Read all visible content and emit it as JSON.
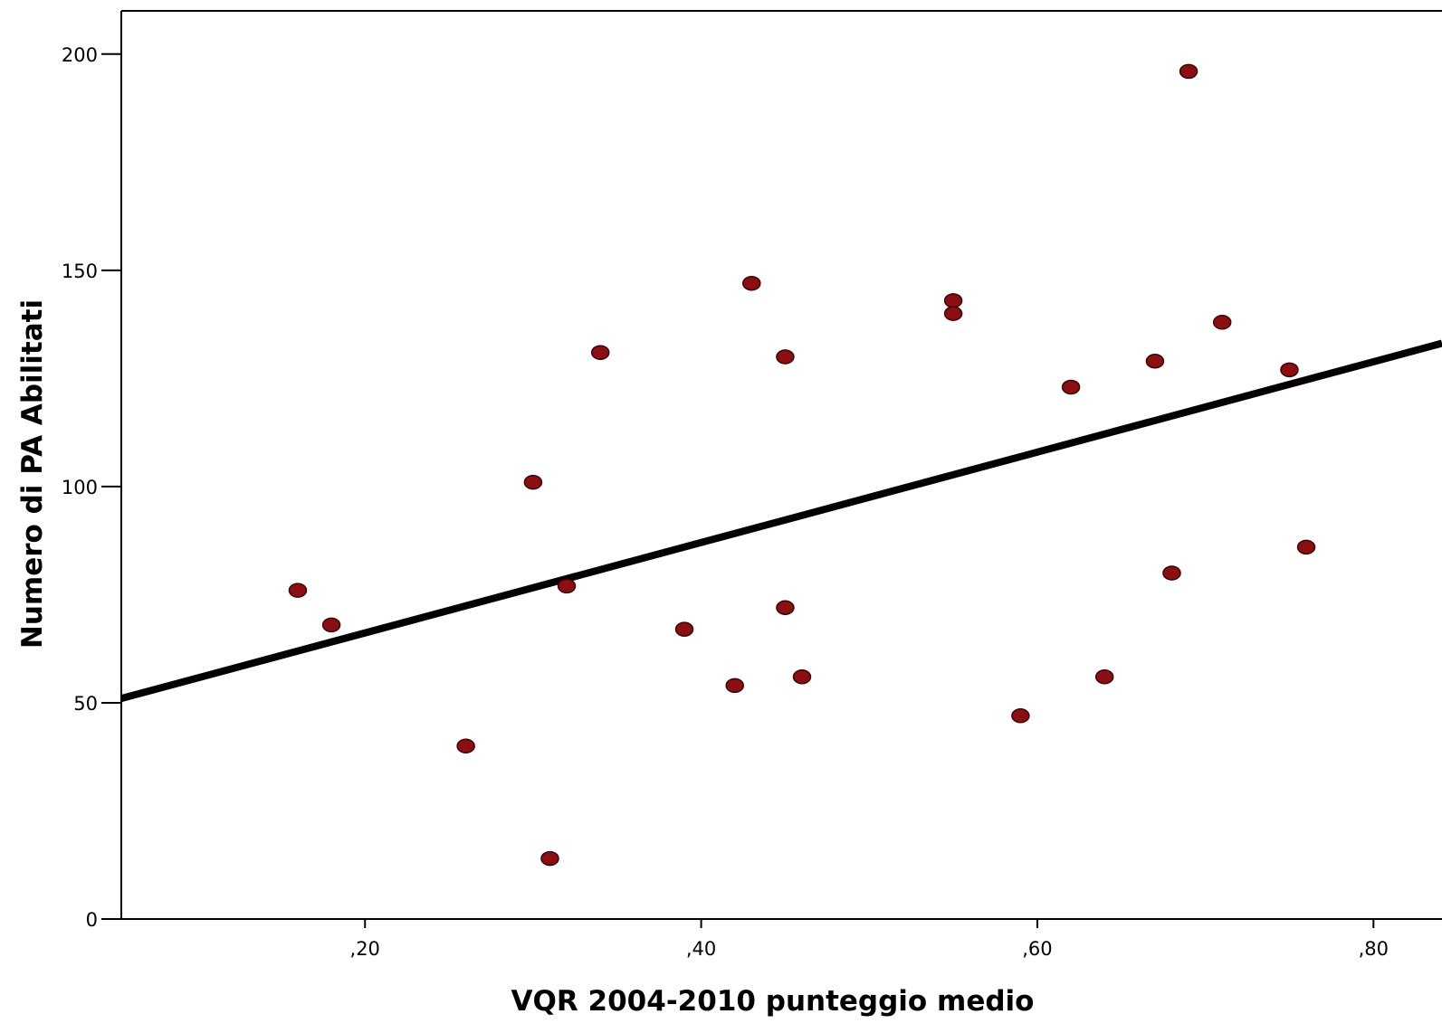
{
  "chart_data": {
    "type": "scatter",
    "title": "",
    "xlabel": "VQR 2004-2010 punteggio medio",
    "ylabel": "Numero di PA Abilitati",
    "xlim": [
      0.055,
      0.83
    ],
    "ylim": [
      0,
      210
    ],
    "x_ticks": [
      0.2,
      0.4,
      0.6,
      0.8
    ],
    "x_tick_labels": [
      ",20",
      ",40",
      ",60",
      ",80"
    ],
    "y_ticks": [
      0,
      50,
      100,
      150,
      200
    ],
    "y_tick_labels": [
      "0",
      "50",
      "100",
      "150",
      "200"
    ],
    "grid": false,
    "legend": "none",
    "series": [
      {
        "points": [
          {
            "x": 0.16,
            "y": 76
          },
          {
            "x": 0.18,
            "y": 68
          },
          {
            "x": 0.26,
            "y": 40
          },
          {
            "x": 0.3,
            "y": 101
          },
          {
            "x": 0.31,
            "y": 14
          },
          {
            "x": 0.32,
            "y": 77
          },
          {
            "x": 0.34,
            "y": 131
          },
          {
            "x": 0.39,
            "y": 67
          },
          {
            "x": 0.42,
            "y": 54
          },
          {
            "x": 0.43,
            "y": 147
          },
          {
            "x": 0.45,
            "y": 130
          },
          {
            "x": 0.45,
            "y": 72
          },
          {
            "x": 0.46,
            "y": 56
          },
          {
            "x": 0.55,
            "y": 143
          },
          {
            "x": 0.55,
            "y": 140
          },
          {
            "x": 0.59,
            "y": 47
          },
          {
            "x": 0.62,
            "y": 123
          },
          {
            "x": 0.64,
            "y": 56
          },
          {
            "x": 0.67,
            "y": 129
          },
          {
            "x": 0.68,
            "y": 80
          },
          {
            "x": 0.69,
            "y": 196
          },
          {
            "x": 0.71,
            "y": 138
          },
          {
            "x": 0.75,
            "y": 127
          },
          {
            "x": 0.76,
            "y": 86
          }
        ]
      }
    ],
    "fit_line": {
      "type": "linear",
      "points": [
        {
          "x": 0.055,
          "y": 51
        },
        {
          "x": 0.83,
          "y": 132
        }
      ]
    },
    "colors": {
      "marker_fill": "#8b0f12",
      "marker_edge": "#3a0406",
      "fit_line": "#000000",
      "axis": "#000000",
      "background": "#ffffff"
    }
  }
}
